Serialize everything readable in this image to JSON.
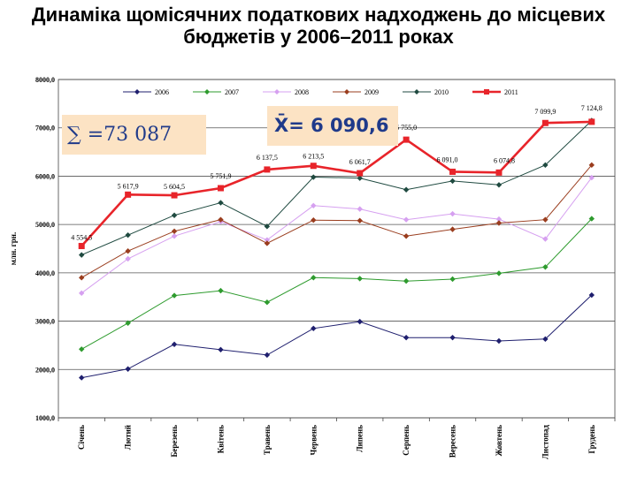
{
  "title": {
    "line1": "Динаміка щомісячних податкових надходжень до місцевих",
    "line2": "бюджетів у 2006–2011 роках"
  },
  "annotations": {
    "sum": "∑ =73 087",
    "mean": "X̄= 6 090,6"
  },
  "colors": {
    "2006": "#1f1f6e",
    "2007": "#2e9b2e",
    "2008": "#d6a0f0",
    "2009": "#9a3d1e",
    "2010": "#1f4a40",
    "2011": "#e8242a",
    "box_fill": "#fce3c4",
    "box_text": "#1f3a8a"
  },
  "chart_data": {
    "type": "line",
    "ylabel": "млн. грн.",
    "ylim": [
      1000,
      8000
    ],
    "yticks": [
      "1000,0",
      "2000,0",
      "3000,0",
      "4000,0",
      "5000,0",
      "6000,0",
      "7000,0",
      "8000,0"
    ],
    "categories": [
      "Січень",
      "Лютий",
      "Березень",
      "Квітень",
      "Травень",
      "Червень",
      "Липень",
      "Серпень",
      "Вересень",
      "Жовтень",
      "Листопад",
      "Грудень"
    ],
    "legend_position": "top",
    "grid": "horizontal",
    "series": [
      {
        "name": "2006",
        "values": [
          1830,
          2010,
          2520,
          2410,
          2300,
          2850,
          2990,
          2660,
          2660,
          2590,
          2630,
          3540
        ]
      },
      {
        "name": "2007",
        "values": [
          2420,
          2960,
          3530,
          3630,
          3390,
          3900,
          3880,
          3830,
          3870,
          3990,
          4120,
          5120
        ]
      },
      {
        "name": "2008",
        "values": [
          3580,
          4290,
          4760,
          5060,
          4680,
          5390,
          5320,
          5100,
          5220,
          5110,
          4700,
          5970
        ]
      },
      {
        "name": "2009",
        "values": [
          3900,
          4450,
          4860,
          5100,
          4610,
          5090,
          5080,
          4760,
          4900,
          5030,
          5100,
          6230
        ]
      },
      {
        "name": "2010",
        "values": [
          4370,
          4780,
          5190,
          5450,
          4960,
          5980,
          5960,
          5720,
          5900,
          5820,
          6230,
          7150
        ]
      },
      {
        "name": "2011",
        "values": [
          4554.5,
          5617.9,
          5604.5,
          5751.9,
          6137.5,
          6213.5,
          6061.7,
          6755.0,
          6091.0,
          6074.8,
          7099.9,
          7124.8
        ],
        "data_labels": [
          "4 554,5",
          "5 617,9",
          "5 604,5",
          "5 751,9",
          "6 137,5",
          "6 213,5",
          "6 061,7",
          "6 755,0",
          "6 091,0",
          "6 074,8",
          "7 099,9",
          "7 124,8"
        ]
      }
    ]
  }
}
